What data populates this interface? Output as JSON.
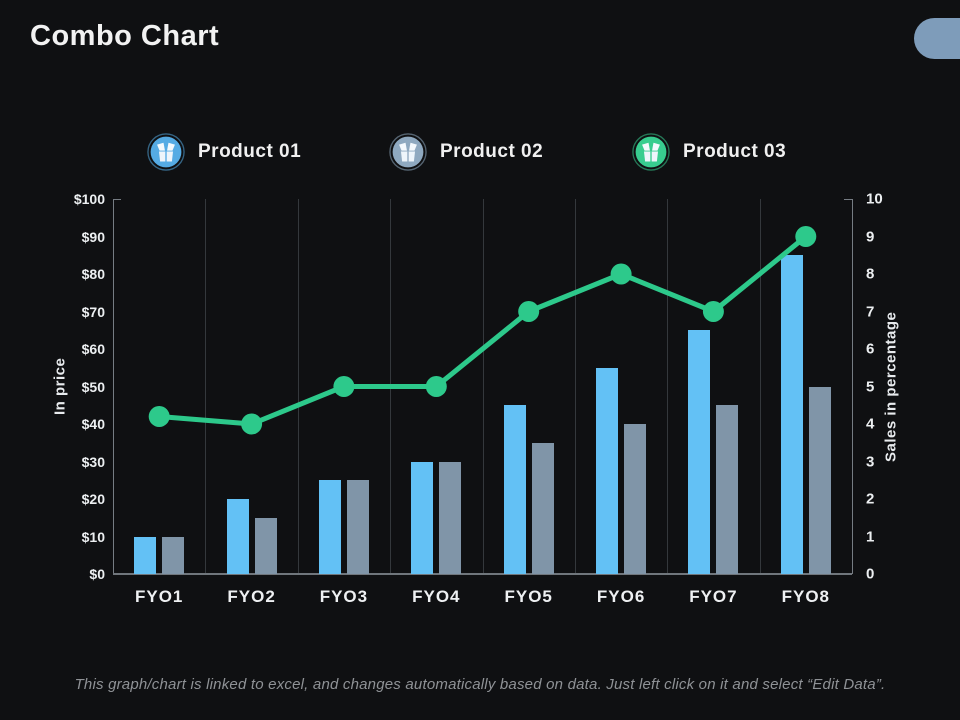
{
  "slide": {
    "title": "Combo Chart",
    "background_color": "#0f1012",
    "corner_pill_color": "#7e9cba",
    "footnote": "This graph/chart is linked to excel, and changes automatically based on data. Just left click on it and select “Edit Data”."
  },
  "legend": {
    "items": [
      {
        "label": "Product 01",
        "color": "#55abe4",
        "icon": "gift-box-icon"
      },
      {
        "label": "Product 02",
        "color": "#8fa9c0",
        "icon": "gift-box-icon"
      },
      {
        "label": "Product 03",
        "color": "#38cd8f",
        "icon": "gift-box-icon"
      }
    ]
  },
  "chart_data": {
    "type": "combo (grouped bar + line, dual axis)",
    "categories": [
      "FYO1",
      "FYO2",
      "FYO3",
      "FYO4",
      "FYO5",
      "FYO6",
      "FYO7",
      "FYO8"
    ],
    "series": [
      {
        "name": "Product 01",
        "type": "bar",
        "axis": "left",
        "color": "#63c1f5",
        "values": [
          10,
          20,
          25,
          30,
          45,
          55,
          65,
          85
        ]
      },
      {
        "name": "Product 02",
        "type": "bar",
        "axis": "left",
        "color": "#8095a8",
        "values": [
          10,
          15,
          25,
          30,
          35,
          40,
          45,
          50
        ]
      },
      {
        "name": "Product 03",
        "type": "line",
        "axis": "right",
        "color": "#2dc98b",
        "values": [
          4.2,
          4.0,
          5,
          5,
          7,
          8,
          7,
          9
        ]
      }
    ],
    "left_axis": {
      "title": "In price",
      "min": 0,
      "max": 100,
      "ticks": [
        "$100",
        "$90",
        "$80",
        "$70",
        "$60",
        "$50",
        "$40",
        "$30",
        "$20",
        "$10",
        "$0"
      ]
    },
    "right_axis": {
      "title": "Sales in percentage",
      "min": 0,
      "max": 10,
      "ticks": [
        "10",
        "9",
        "8",
        "7",
        "6",
        "5",
        "4",
        "3",
        "2",
        "1",
        "0"
      ]
    },
    "grid": "vertical lines at category boundaries only",
    "legend_position": "top"
  }
}
